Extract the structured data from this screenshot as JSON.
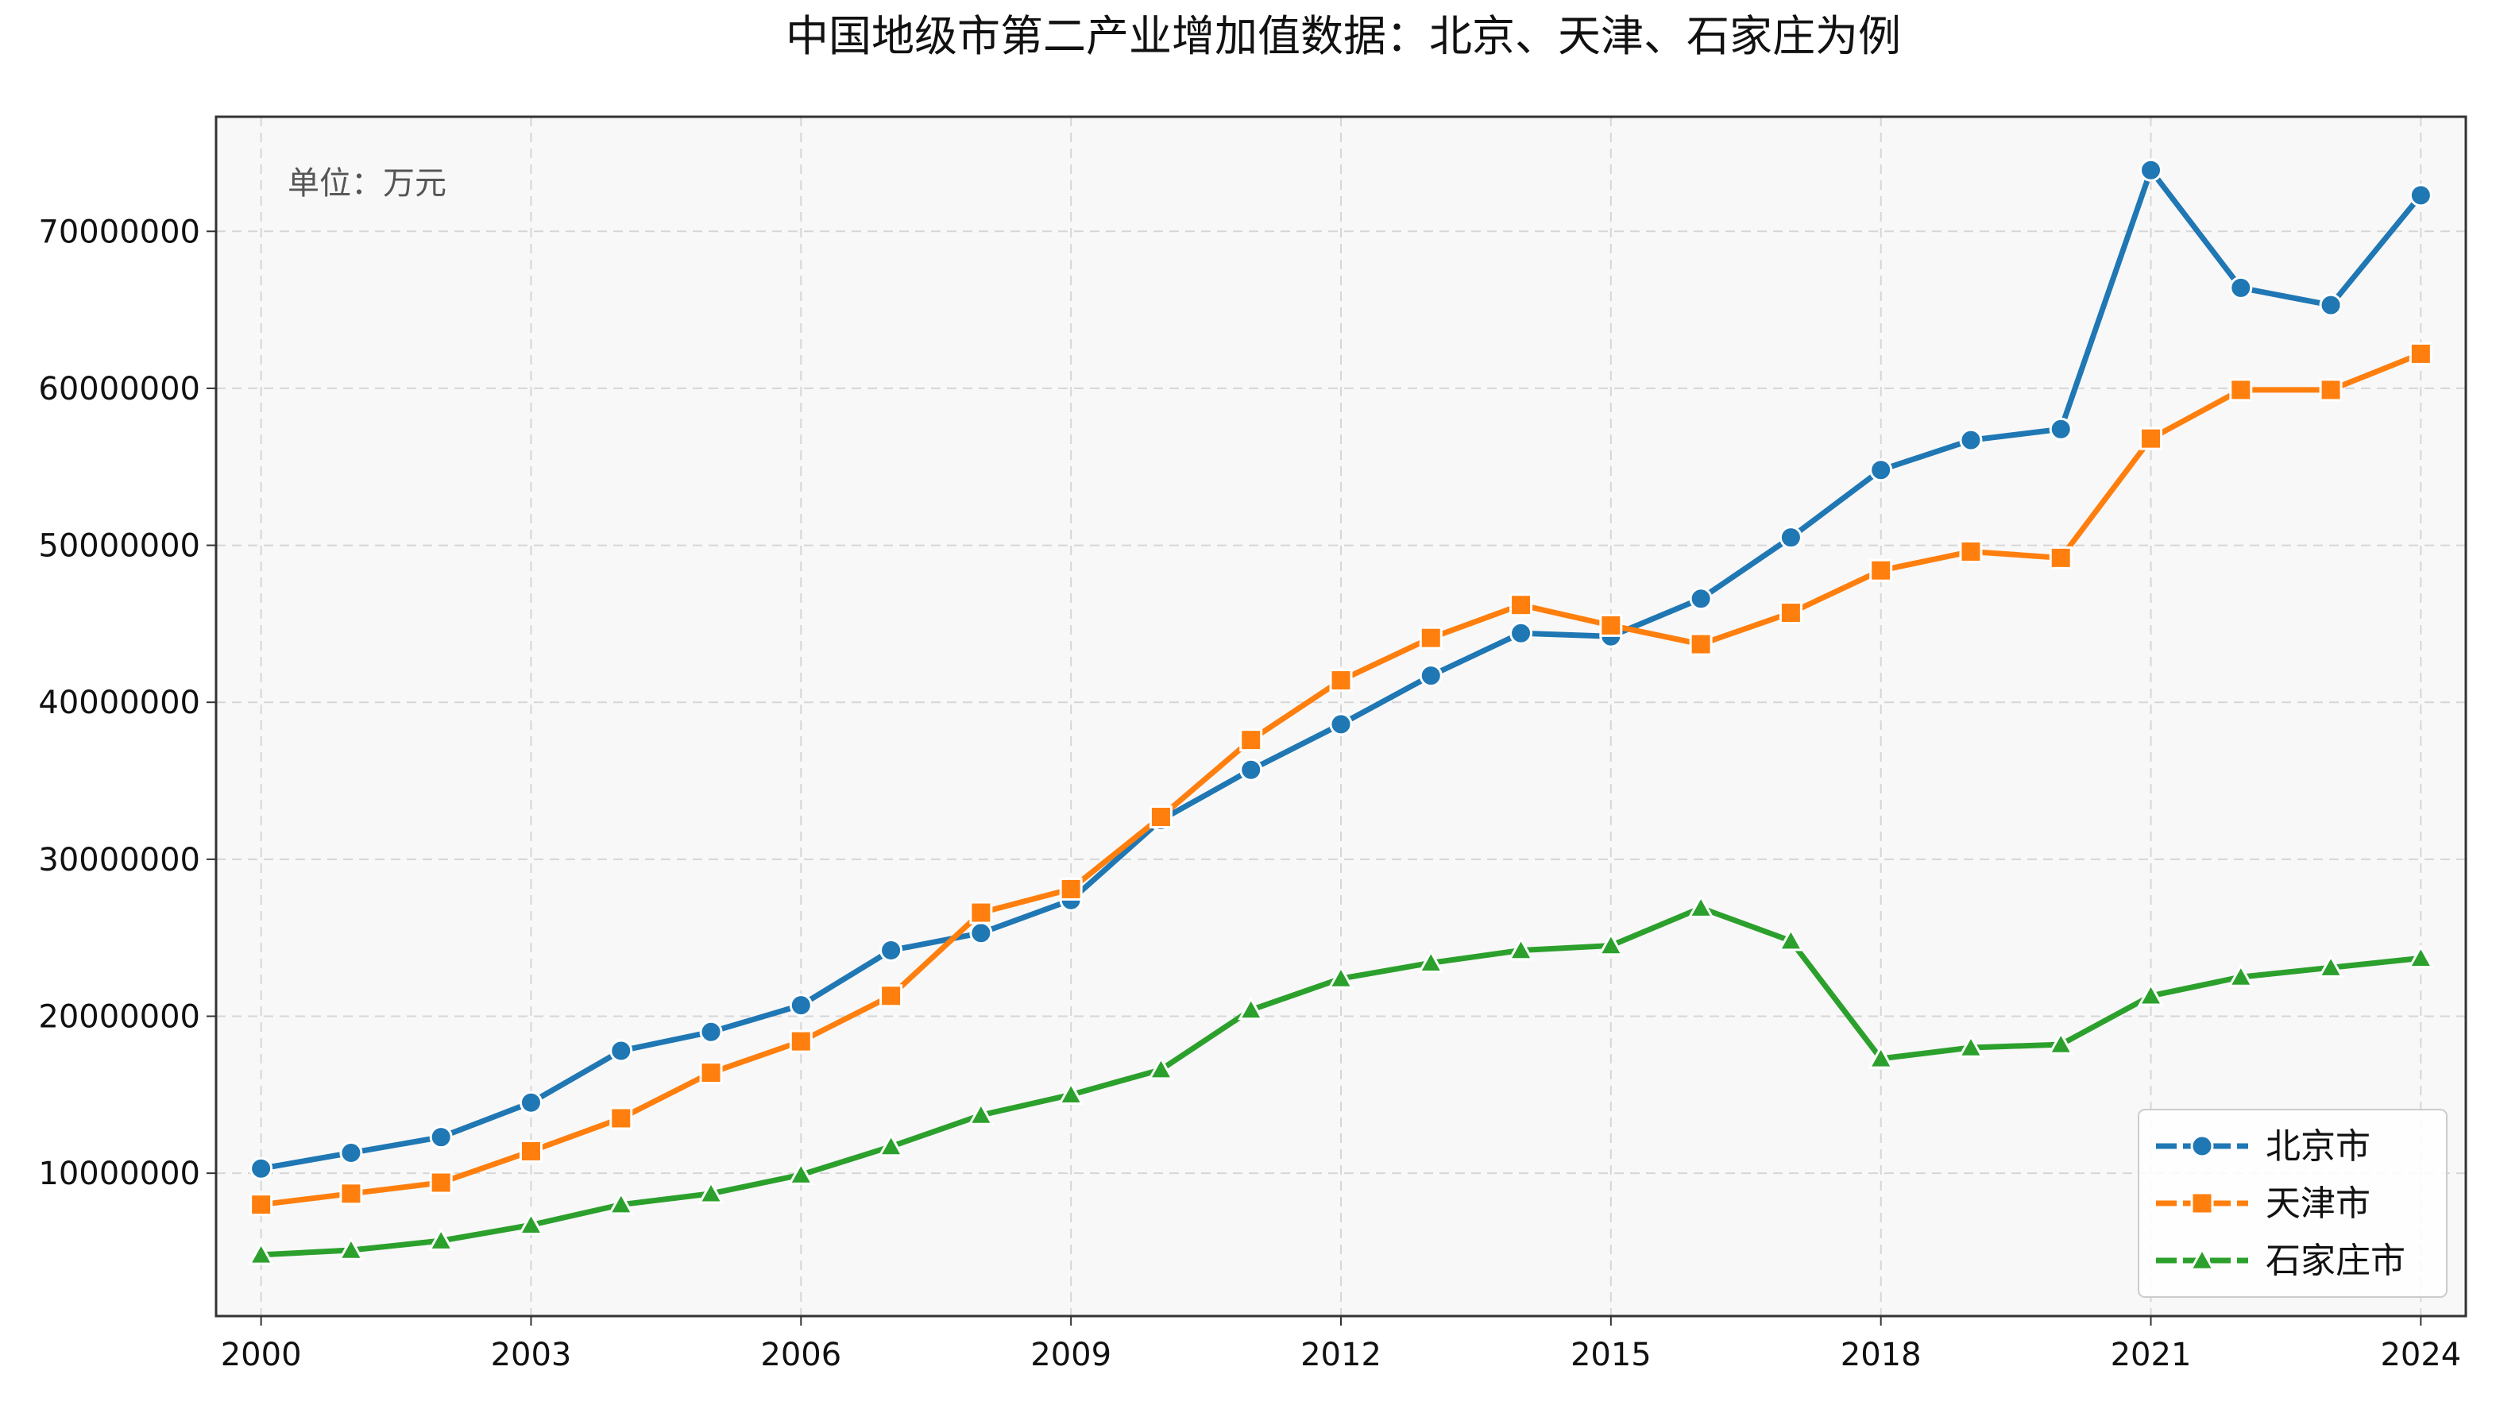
{
  "chart_data": {
    "type": "line",
    "title": "中国地级市第二产业增加值数据：北京、天津、石家庄为例",
    "annotation": "单位：万元",
    "xlabel": "",
    "ylabel": "",
    "x": [
      2000,
      2001,
      2002,
      2003,
      2004,
      2005,
      2006,
      2007,
      2008,
      2009,
      2010,
      2011,
      2012,
      2013,
      2014,
      2015,
      2016,
      2017,
      2018,
      2019,
      2020,
      2021,
      2022,
      2023,
      2024
    ],
    "xticks": [
      "2000",
      "2003",
      "2006",
      "2009",
      "2012",
      "2015",
      "2018",
      "2021",
      "2024"
    ],
    "xlim": [
      1999.5,
      2024.5
    ],
    "yticks": [
      "10000000",
      "20000000",
      "30000000",
      "40000000",
      "50000000",
      "60000000",
      "70000000"
    ],
    "ylim": [
      900000,
      77300000
    ],
    "grid": true,
    "legend_position": "bottom-right",
    "series": [
      {
        "name": "北京市",
        "color": "#1f77b4",
        "marker": "circle",
        "values": [
          10300000,
          11300000,
          12300000,
          14500000,
          17800000,
          19000000,
          20700000,
          24200000,
          25300000,
          27400000,
          32500000,
          35700000,
          38600000,
          41700000,
          44400000,
          44200000,
          46600000,
          50500000,
          54800000,
          56700000,
          57400000,
          73900000,
          66400000,
          65300000,
          72300000
        ]
      },
      {
        "name": "天津市",
        "color": "#ff7f0e",
        "marker": "square",
        "values": [
          8000000,
          8700000,
          9400000,
          11400000,
          13500000,
          16400000,
          18400000,
          21300000,
          26600000,
          28100000,
          32700000,
          37600000,
          41400000,
          44100000,
          46200000,
          44900000,
          43700000,
          45700000,
          48400000,
          49600000,
          49200000,
          56800000,
          59900000,
          59900000,
          62200000
        ]
      },
      {
        "name": "石家庄市",
        "color": "#2ca02c",
        "marker": "triangle",
        "values": [
          4800000,
          5100000,
          5700000,
          6700000,
          8000000,
          8700000,
          9900000,
          11700000,
          13700000,
          15000000,
          16600000,
          20400000,
          22400000,
          23400000,
          24200000,
          24500000,
          26900000,
          24800000,
          17300000,
          18000000,
          18200000,
          21300000,
          22500000,
          23100000,
          23700000
        ]
      }
    ]
  }
}
